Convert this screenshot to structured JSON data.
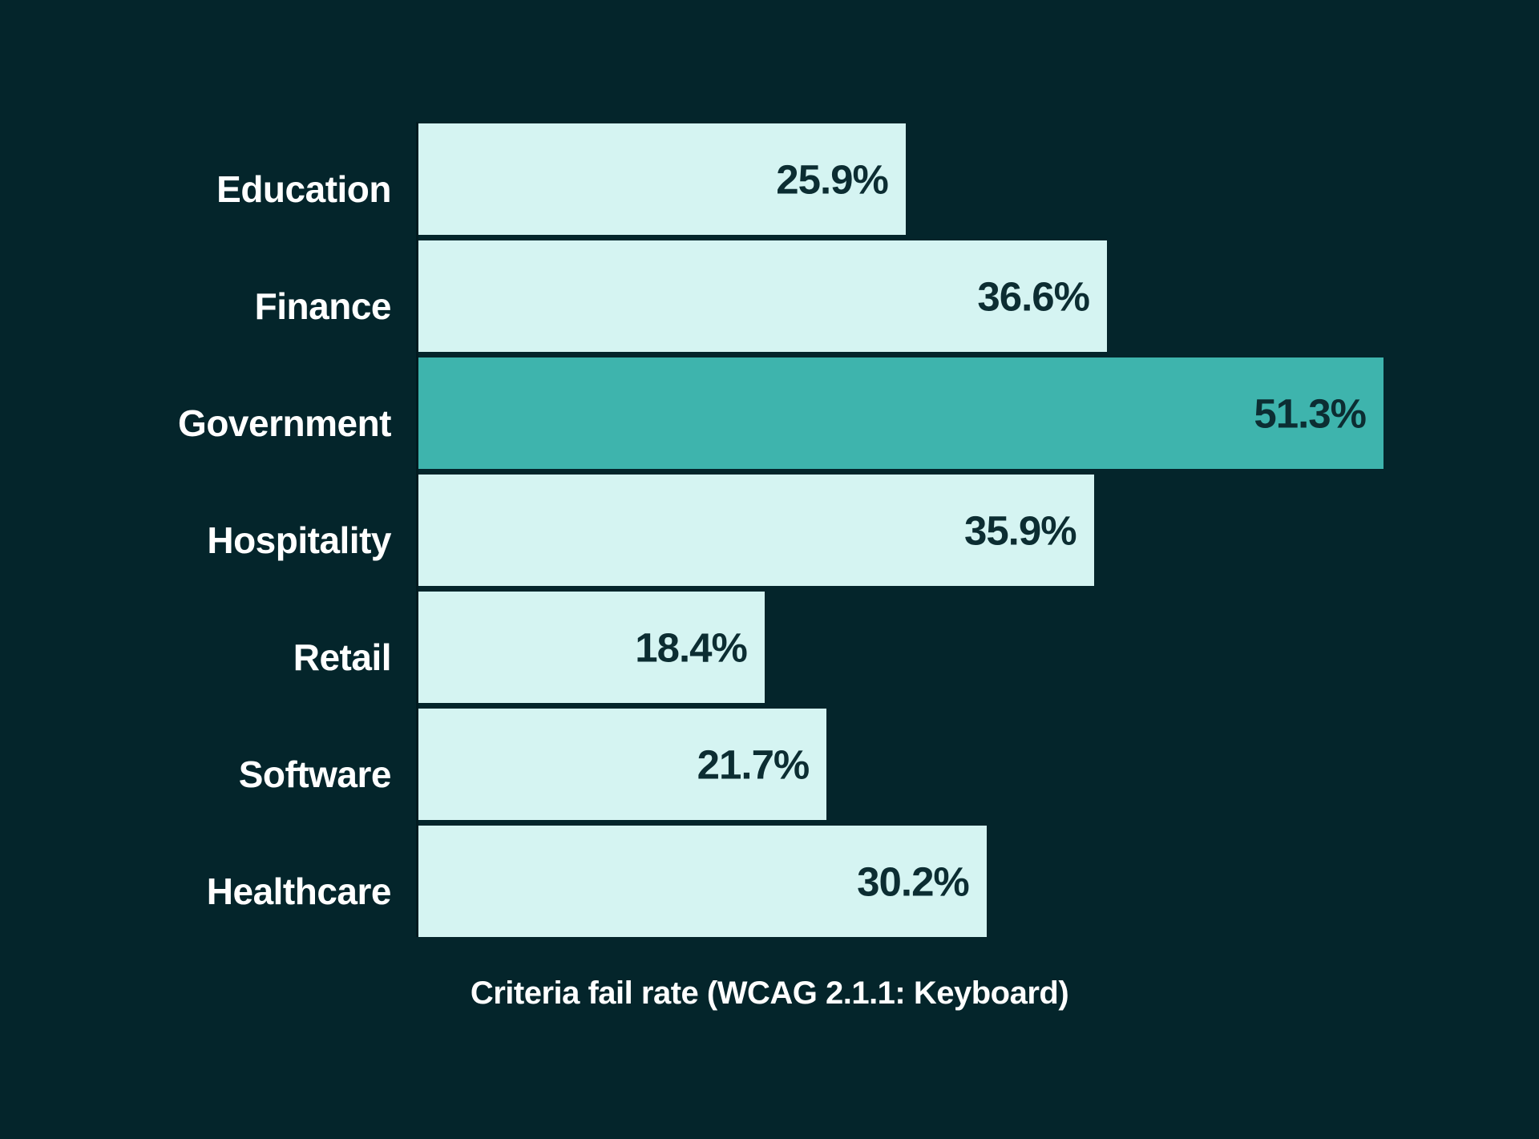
{
  "chart_data": {
    "type": "bar",
    "orientation": "horizontal",
    "categories": [
      "Education",
      "Finance",
      "Government",
      "Hospitality",
      "Retail",
      "Software",
      "Healthcare"
    ],
    "values": [
      25.9,
      36.6,
      51.3,
      35.9,
      18.4,
      21.7,
      30.2
    ],
    "value_labels": [
      "25.9%",
      "36.6%",
      "51.3%",
      "35.9%",
      "18.4%",
      "21.7%",
      "30.2%"
    ],
    "highlighted_category": "Government",
    "title": "",
    "xlabel": "Criteria fail rate (WCAG 2.1.1: Keyboard)",
    "ylabel": "",
    "xlim": [
      0,
      51.3
    ],
    "grid": false,
    "legend": false,
    "value_label_position": "inside-right",
    "colors": {
      "background": "#04252b",
      "bar_default": "#d5f4f2",
      "bar_highlight": "#3eb4ad",
      "bar_value_text": "#0c2d32",
      "category_text": "#ffffff",
      "axis_title_text": "#ffffff",
      "axis_line": "#011b20"
    }
  }
}
